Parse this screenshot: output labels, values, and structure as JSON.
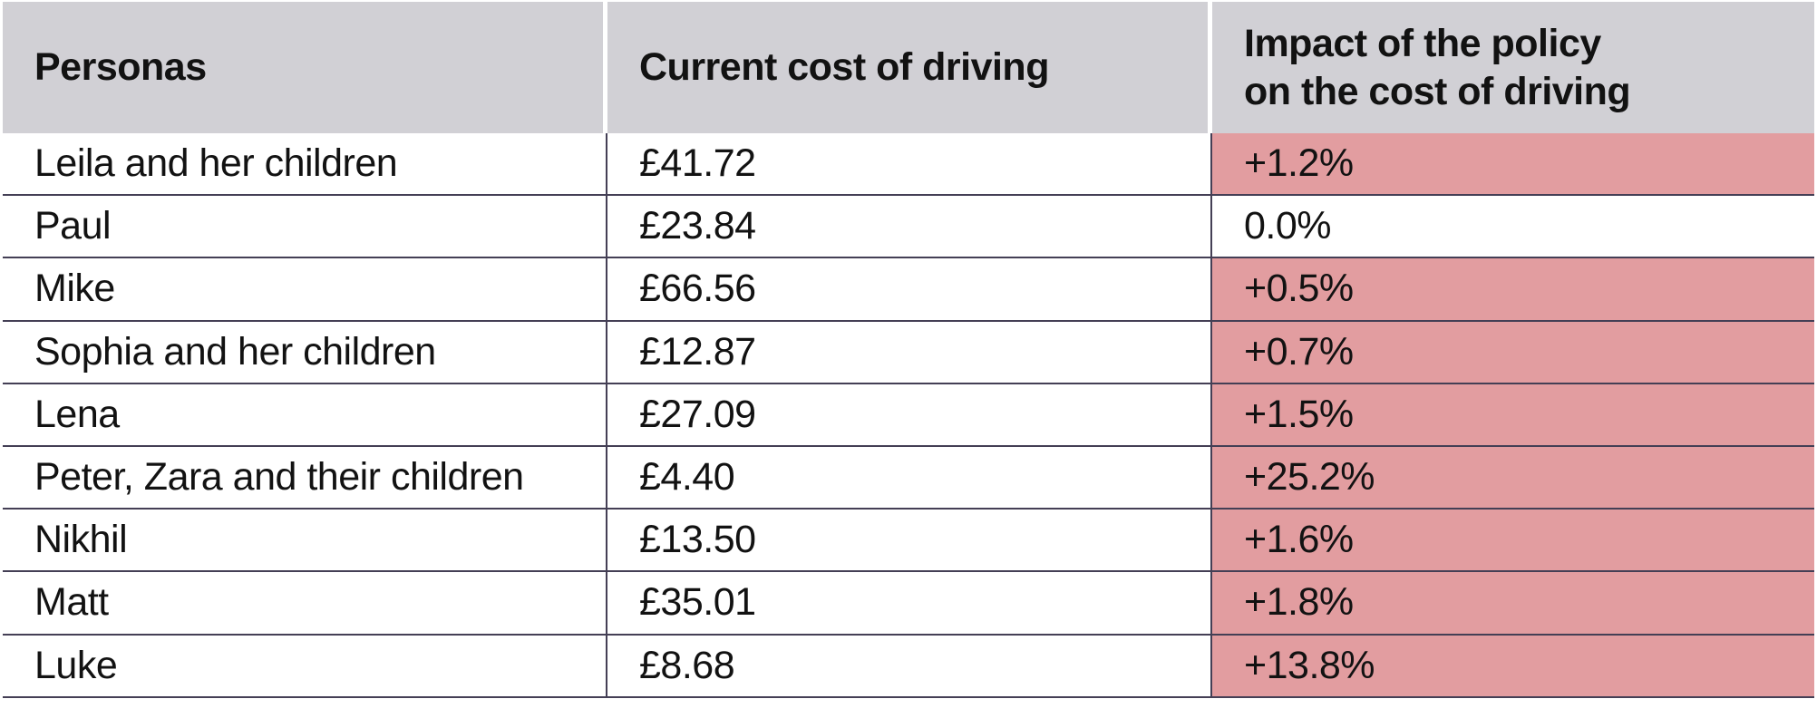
{
  "colors": {
    "header_bg": "#d1d0d5",
    "highlight_bg": "#e29da0",
    "grid_line": "#443f55",
    "text": "#121212"
  },
  "chart_data": {
    "type": "table",
    "title": "",
    "columns": [
      "Personas",
      "Current cost of driving",
      "Impact of the policy\non the cost of driving"
    ],
    "rows": [
      {
        "persona": "Leila and her children",
        "current_cost": "£41.72",
        "current_cost_value": 41.72,
        "impact": "+1.2%",
        "impact_value_pct": 1.2,
        "highlighted": true
      },
      {
        "persona": "Paul",
        "current_cost": "£23.84",
        "current_cost_value": 23.84,
        "impact": "0.0%",
        "impact_value_pct": 0.0,
        "highlighted": false
      },
      {
        "persona": "Mike",
        "current_cost": "£66.56",
        "current_cost_value": 66.56,
        "impact": "+0.5%",
        "impact_value_pct": 0.5,
        "highlighted": true
      },
      {
        "persona": "Sophia and her children",
        "current_cost": "£12.87",
        "current_cost_value": 12.87,
        "impact": "+0.7%",
        "impact_value_pct": 0.7,
        "highlighted": true
      },
      {
        "persona": "Lena",
        "current_cost": "£27.09",
        "current_cost_value": 27.09,
        "impact": "+1.5%",
        "impact_value_pct": 1.5,
        "highlighted": true
      },
      {
        "persona": "Peter, Zara and their children",
        "current_cost": "£4.40",
        "current_cost_value": 4.4,
        "impact": "+25.2%",
        "impact_value_pct": 25.2,
        "highlighted": true
      },
      {
        "persona": "Nikhil",
        "current_cost": "£13.50",
        "current_cost_value": 13.5,
        "impact": "+1.6%",
        "impact_value_pct": 1.6,
        "highlighted": true
      },
      {
        "persona": "Matt",
        "current_cost": "£35.01",
        "current_cost_value": 35.01,
        "impact": "+1.8%",
        "impact_value_pct": 1.8,
        "highlighted": true
      },
      {
        "persona": "Luke",
        "current_cost": "£8.68",
        "current_cost_value": 8.68,
        "impact": "+13.8%",
        "impact_value_pct": 13.8,
        "highlighted": true
      }
    ]
  }
}
